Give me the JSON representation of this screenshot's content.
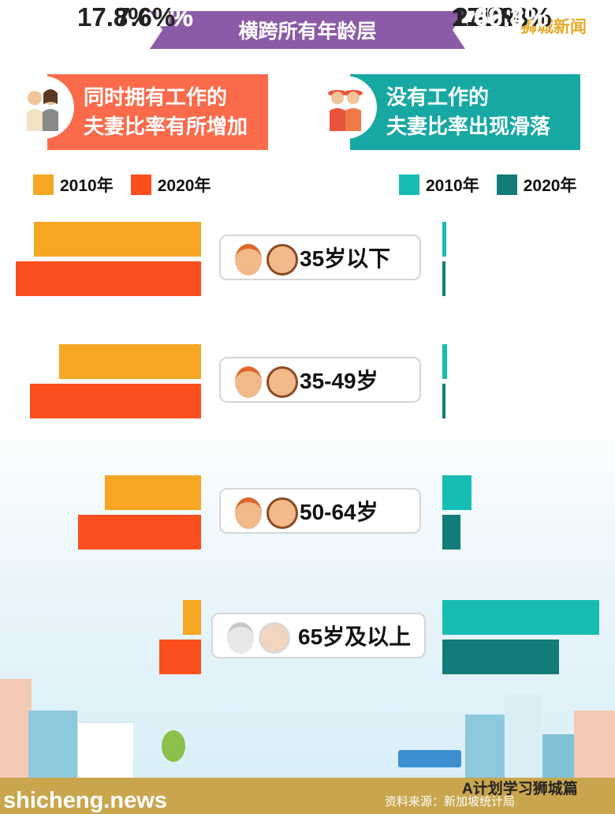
{
  "title": "横跨所有年龄层",
  "brand_top": "狮城新闻",
  "left_header": {
    "line1": "同时拥有工作的",
    "line2": "夫妻比率有所增加"
  },
  "right_header": {
    "line1": "没有工作的",
    "line2": "夫妻比率出现滑落"
  },
  "legend_left": [
    "2010年",
    "2020年"
  ],
  "legend_right": [
    "2010年",
    "2020年"
  ],
  "colors": {
    "left2010": "#f6a623",
    "left2020": "#fb501e",
    "right2010": "#17bdb3",
    "right2020": "#127c78",
    "banner": "#8c5ba8",
    "leftHeader": "#fb6a4a",
    "rightHeader": "#17a8a3"
  },
  "chart_data": {
    "type": "bar",
    "categories": [
      "35岁以下",
      "35-49岁",
      "50-64岁",
      "65岁及以上"
    ],
    "left_series": [
      {
        "name": "2010年",
        "values": [
          70.8,
          60.1,
          40.8,
          7.6
        ],
        "labels": [
          "70.8%",
          "60.1%",
          "40.8%",
          "7.6%"
        ]
      },
      {
        "name": "2020年",
        "values": [
          78.3,
          72.3,
          51.9,
          17.8
        ],
        "labels": [
          "78.3%",
          "72.3%",
          "51.9%",
          "17.8%"
        ]
      }
    ],
    "right_series": [
      {
        "name": "2010年",
        "values": [
          1.5,
          2.1,
          12.3,
          66.3
        ],
        "labels": [
          "1.5%",
          "2.1",
          "12.3%",
          "66.3%"
        ]
      },
      {
        "name": "2020年",
        "values": [
          1.2,
          1.2,
          7.8,
          49.4
        ],
        "labels": [
          "1.2%",
          "1.2%",
          "7.8%",
          "49.4%"
        ]
      }
    ]
  },
  "footer": {
    "site": "shicheng.news",
    "source": "资料来源：新加坡统计局",
    "brand": "A计划学习狮城篇"
  }
}
